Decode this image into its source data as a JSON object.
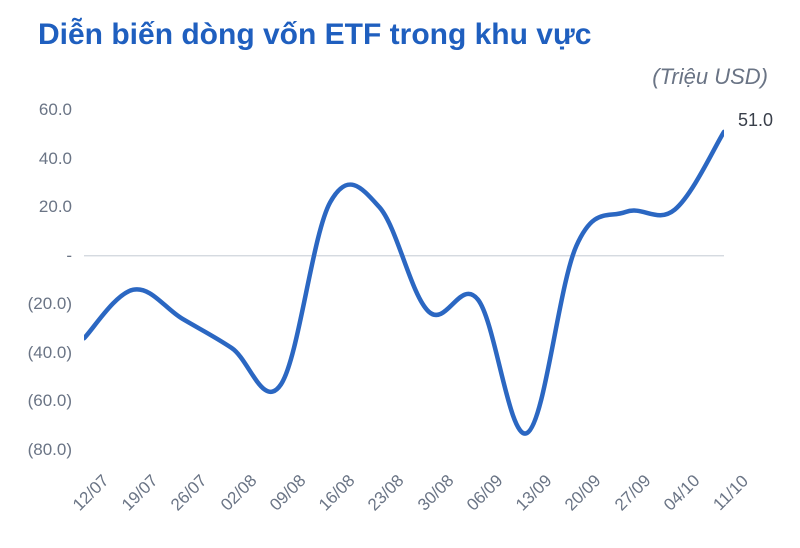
{
  "title": "Diễn biến dòng vốn ETF trong khu vực",
  "subtitle": "(Triệu USD)",
  "chart": {
    "type": "line",
    "line_color": "#2b67c2",
    "line_width": 4.5,
    "zero_line_color": "#cfd4dc",
    "zero_line_width": 1.2,
    "background_color": "#ffffff",
    "y": {
      "min": -80,
      "max": 60,
      "ticks": [
        60,
        40,
        20,
        0,
        -20,
        -40,
        -60,
        -80
      ],
      "tick_labels": [
        "60.0",
        "40.0",
        "20.0",
        "-",
        "(20.0)",
        "(40.0)",
        "(60.0)",
        "(80.0)"
      ],
      "label_color": "#6a7485",
      "label_fontsize": 17
    },
    "x": {
      "categories": [
        "12/07",
        "19/07",
        "26/07",
        "02/08",
        "09/08",
        "16/08",
        "23/08",
        "30/08",
        "06/09",
        "13/09",
        "20/09",
        "27/09",
        "04/10",
        "11/10"
      ],
      "label_color": "#6a7485",
      "label_fontsize": 17,
      "rotation_deg": -45
    },
    "series": {
      "values": [
        -34,
        -14,
        -26,
        -38,
        -53,
        22,
        20,
        -23,
        -18,
        -73,
        4,
        18,
        19,
        51
      ]
    },
    "end_label": {
      "text": "51.0",
      "value": 51,
      "color": "#393f4a",
      "fontsize": 18
    },
    "smoothing": true
  }
}
